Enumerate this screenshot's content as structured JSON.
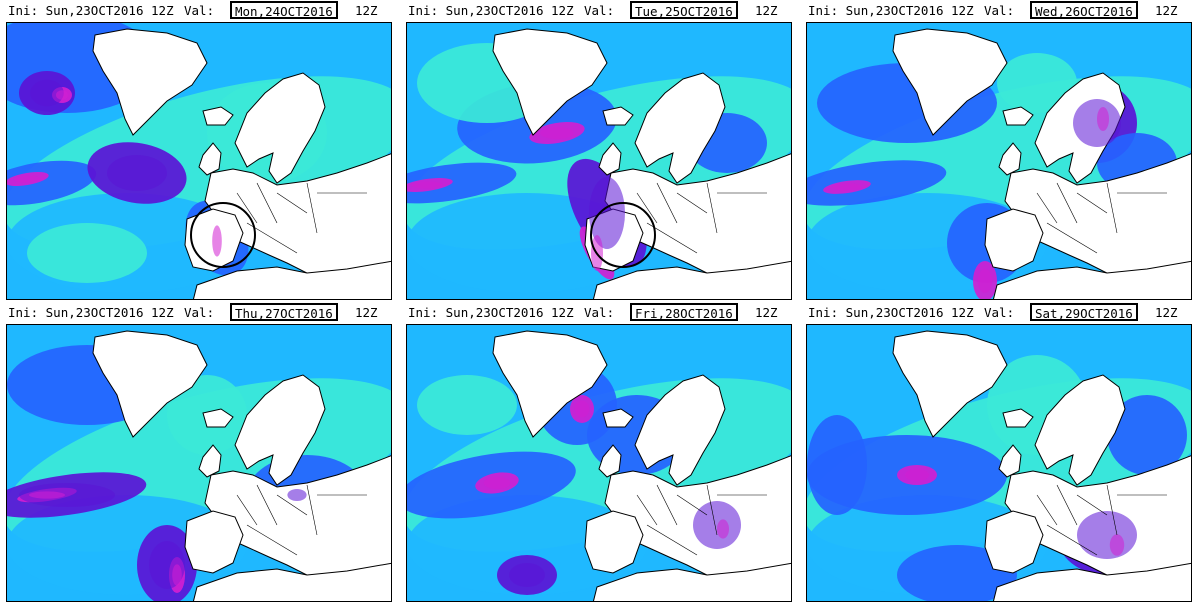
{
  "labels": {
    "ini": "Ini:",
    "val": "Val:"
  },
  "init_time": "Sun,23OCT2016",
  "init_hour": "12Z",
  "panels": [
    {
      "valid_date": "Mon,24OCT2016",
      "valid_hour": "12Z",
      "circle": true
    },
    {
      "valid_date": "Tue,25OCT2016",
      "valid_hour": "12Z",
      "circle": true
    },
    {
      "valid_date": "Wed,26OCT2016",
      "valid_hour": "12Z",
      "circle": false
    },
    {
      "valid_date": "Thu,27OCT2016",
      "valid_hour": "12Z",
      "circle": false
    },
    {
      "valid_date": "Fri,28OCT2016",
      "valid_hour": "12Z",
      "circle": false
    },
    {
      "valid_date": "Sat,29OCT2016",
      "valid_hour": "12Z",
      "circle": false
    }
  ],
  "colors": {
    "ocean_base": "#1fb8ff",
    "light": "#3ce9d8",
    "mid": "#2563ff",
    "strong": "#5b14d6",
    "max": "#d11fd1",
    "land": "#ffffff",
    "coast": "#000000"
  }
}
